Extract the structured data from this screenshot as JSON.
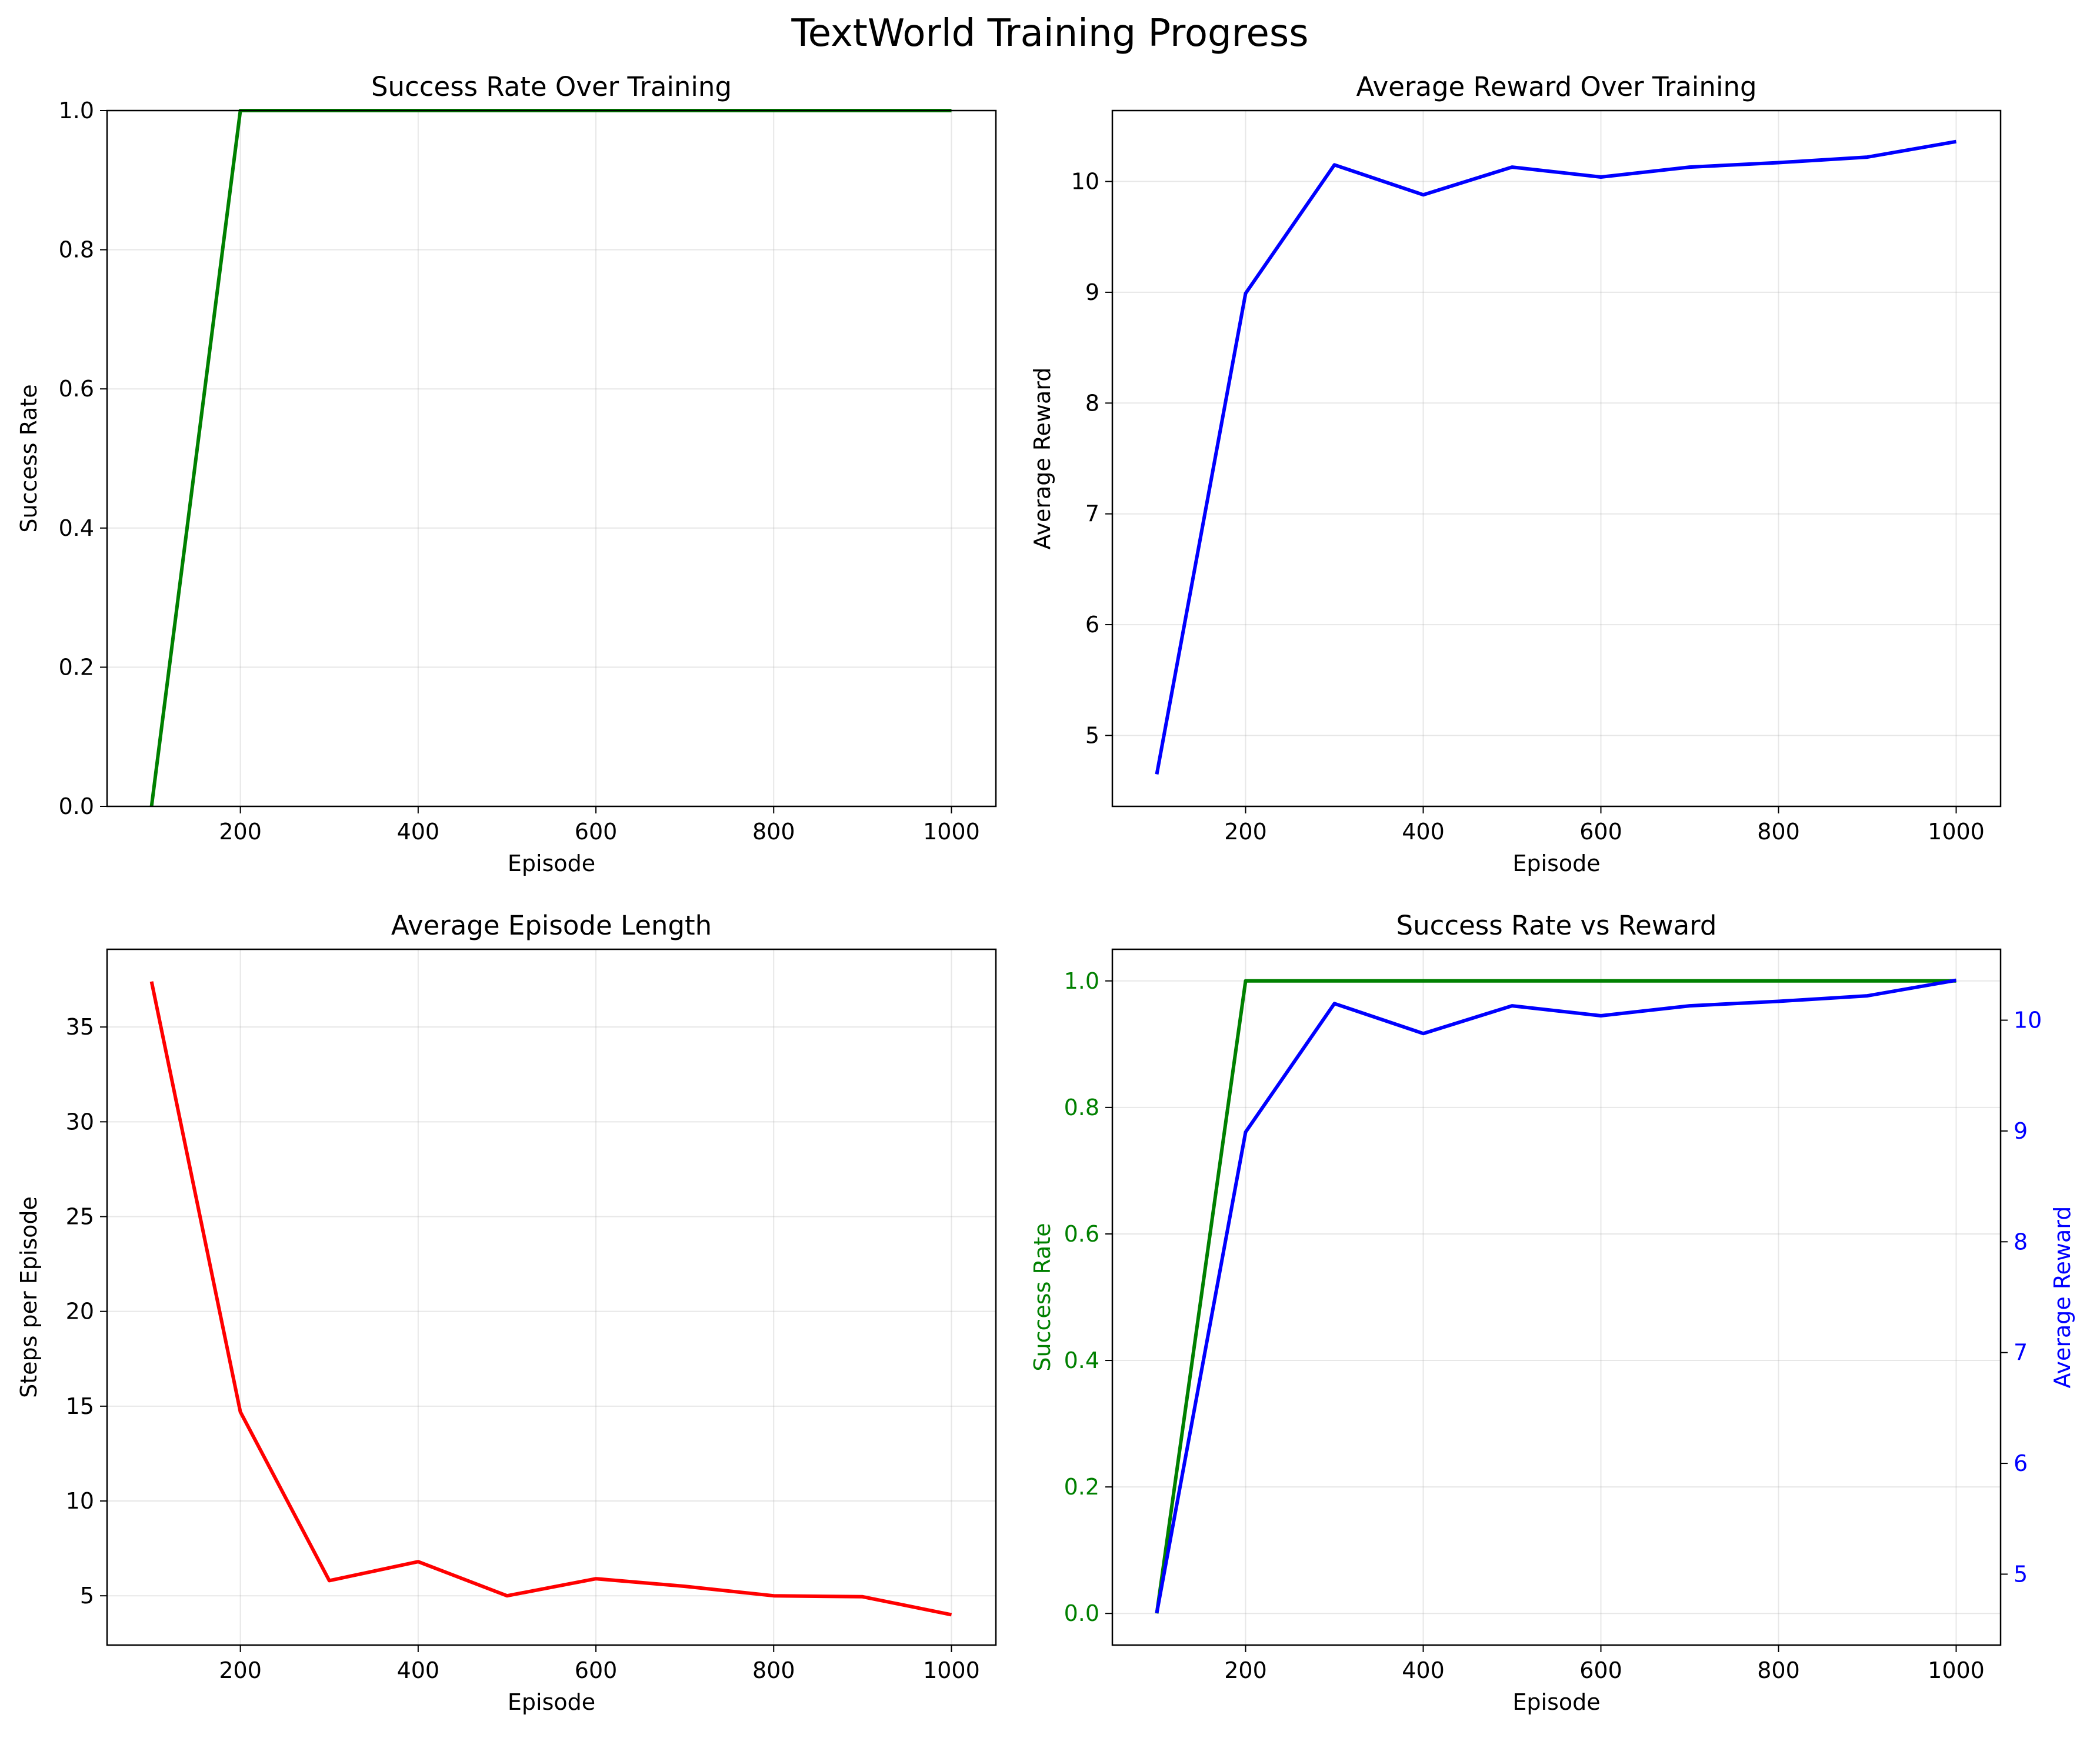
{
  "figure": {
    "title": "TextWorld Training Progress"
  },
  "chart_data": [
    {
      "id": "success",
      "type": "line",
      "title": "Success Rate Over Training",
      "xlabel": "Episode",
      "ylabel": "Success Rate",
      "xlim": [
        50,
        1050
      ],
      "ylim": [
        0,
        1
      ],
      "xticks": [
        200,
        400,
        600,
        800,
        1000
      ],
      "yticks": [
        0.0,
        0.2,
        0.4,
        0.6,
        0.8,
        1.0
      ],
      "ytick_labels": [
        "0.0",
        "0.2",
        "0.4",
        "0.6",
        "0.8",
        "1.0"
      ],
      "grid": true,
      "x": [
        100,
        200,
        300,
        400,
        500,
        600,
        700,
        800,
        900,
        1000
      ],
      "series": [
        {
          "color": "#008000",
          "values": [
            0,
            1,
            1,
            1,
            1,
            1,
            1,
            1,
            1,
            1
          ]
        }
      ]
    },
    {
      "id": "reward",
      "type": "line",
      "title": "Average Reward Over Training",
      "xlabel": "Episode",
      "ylabel": "Average Reward",
      "xlim": [
        50,
        1050
      ],
      "ylim": [
        4.36,
        10.64
      ],
      "xticks": [
        200,
        400,
        600,
        800,
        1000
      ],
      "yticks": [
        5,
        6,
        7,
        8,
        9,
        10
      ],
      "ytick_labels": [
        "5",
        "6",
        "7",
        "8",
        "9",
        "10"
      ],
      "grid": true,
      "x": [
        100,
        200,
        300,
        400,
        500,
        600,
        700,
        800,
        900,
        1000
      ],
      "series": [
        {
          "color": "#0000ff",
          "values": [
            4.65,
            8.99,
            10.15,
            9.88,
            10.13,
            10.04,
            10.13,
            10.17,
            10.22,
            10.36
          ]
        }
      ]
    },
    {
      "id": "length",
      "type": "line",
      "title": "Average Episode Length",
      "xlabel": "Episode",
      "ylabel": "Steps per Episode",
      "xlim": [
        50,
        1050
      ],
      "ylim": [
        2.4,
        39.1
      ],
      "xticks": [
        200,
        400,
        600,
        800,
        1000
      ],
      "yticks": [
        5,
        10,
        15,
        20,
        25,
        30,
        35
      ],
      "ytick_labels": [
        "5",
        "10",
        "15",
        "20",
        "25",
        "30",
        "35"
      ],
      "grid": true,
      "x": [
        100,
        200,
        300,
        400,
        500,
        600,
        700,
        800,
        900,
        1000
      ],
      "series": [
        {
          "color": "#ff0000",
          "values": [
            37.4,
            14.7,
            5.8,
            6.8,
            5.0,
            5.9,
            5.5,
            5.0,
            4.95,
            4.0
          ]
        }
      ]
    },
    {
      "id": "combined",
      "type": "line",
      "title": "Success Rate vs Reward",
      "xlabel": "Episode",
      "ylabel": "Success Rate",
      "ylabel_color": "#008000",
      "y2label": "Average Reward",
      "y2label_color": "#0000ff",
      "xlim": [
        50,
        1050
      ],
      "ylim": [
        -0.05,
        1.05
      ],
      "y2lim": [
        4.36,
        10.64
      ],
      "xticks": [
        200,
        400,
        600,
        800,
        1000
      ],
      "yticks": [
        0.0,
        0.2,
        0.4,
        0.6,
        0.8,
        1.0
      ],
      "ytick_labels": [
        "0.0",
        "0.2",
        "0.4",
        "0.6",
        "0.8",
        "1.0"
      ],
      "y2ticks": [
        5,
        6,
        7,
        8,
        9,
        10
      ],
      "y2tick_labels": [
        "5",
        "6",
        "7",
        "8",
        "9",
        "10"
      ],
      "grid": true,
      "x": [
        100,
        200,
        300,
        400,
        500,
        600,
        700,
        800,
        900,
        1000
      ],
      "series": [
        {
          "color": "#008000",
          "axis": "left",
          "values": [
            0,
            1,
            1,
            1,
            1,
            1,
            1,
            1,
            1,
            1
          ]
        },
        {
          "color": "#0000ff",
          "axis": "right",
          "values": [
            4.65,
            8.99,
            10.15,
            9.88,
            10.13,
            10.04,
            10.13,
            10.17,
            10.22,
            10.36
          ]
        }
      ]
    }
  ]
}
